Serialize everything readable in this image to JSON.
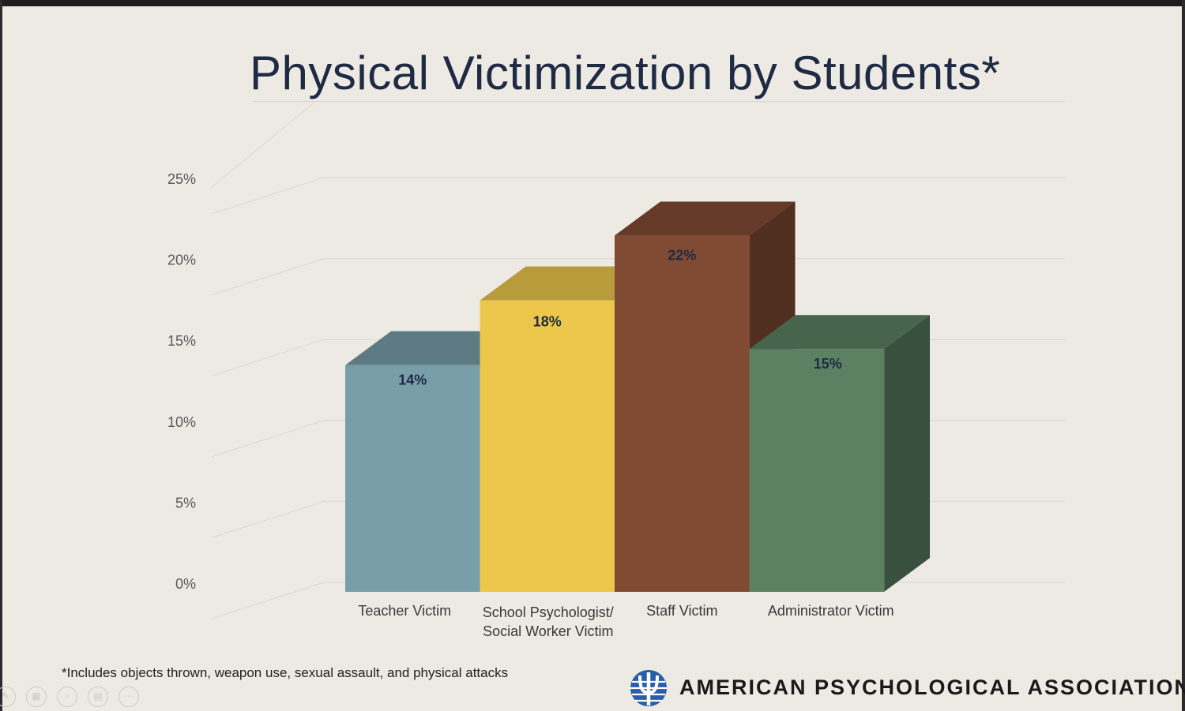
{
  "slide": {
    "title": "Physical Victimization by Students*",
    "footnote": "*Includes objects thrown, weapon use, sexual assault, and physical attacks",
    "logo_text": "AMERICAN PSYCHOLOGICAL ASSOCIATION",
    "logo_icon": "psi-globe-icon",
    "background_color": "#ede9e3",
    "title_color": "#1f2a44"
  },
  "toolbar": {
    "icons": [
      "pen-icon",
      "slides-grid-icon",
      "zoom-icon",
      "subtitles-icon",
      "more-options-icon"
    ]
  },
  "chart_data": {
    "type": "bar",
    "style": "3d-column",
    "title": "Physical Victimization by Students*",
    "xlabel": "",
    "ylabel": "",
    "ylim": [
      0,
      0.25
    ],
    "yticks": [
      "0%",
      "5%",
      "10%",
      "15%",
      "20%",
      "25%"
    ],
    "grid": true,
    "legend": "none",
    "categories": [
      [
        "Teacher Victim"
      ],
      [
        "School Psychologist/",
        "Social Worker Victim"
      ],
      [
        "Staff Victim"
      ],
      [
        "Administrator Victim"
      ]
    ],
    "values": [
      0.14,
      0.18,
      0.22,
      0.15
    ],
    "data_labels": [
      "14%",
      "18%",
      "22%",
      "15%"
    ],
    "colors": [
      "#789ea9",
      "#ecc74b",
      "#814a33",
      "#5b8162"
    ]
  }
}
